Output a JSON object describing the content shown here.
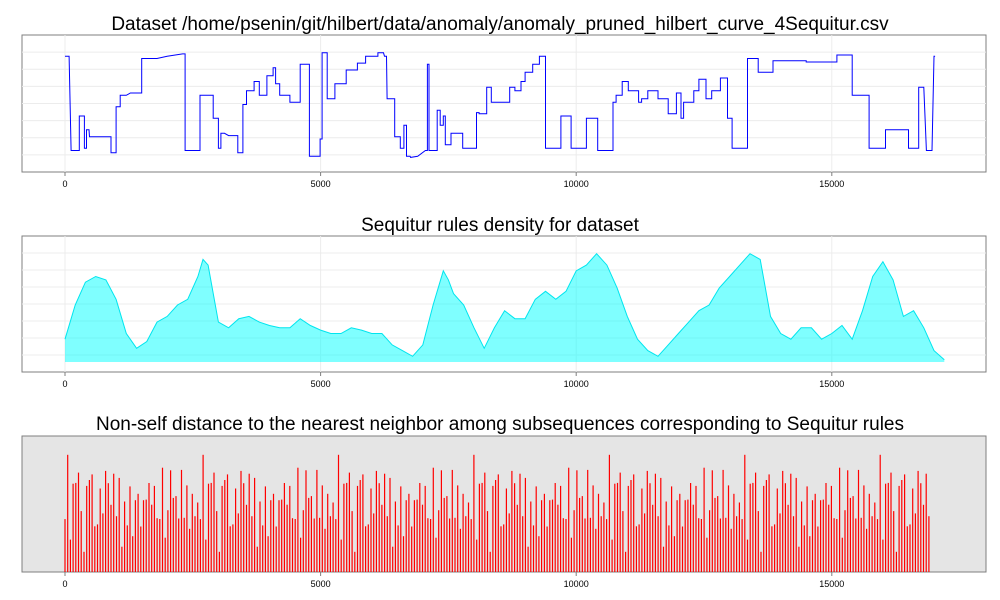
{
  "chart_data": [
    {
      "type": "line",
      "title": "Dataset /home/psenin/git/hilbert/data/anomaly/anomaly_pruned_hilbert_curve_4Sequitur.csv",
      "xlabel": "",
      "ylabel": "",
      "xlim": [
        0,
        17200
      ],
      "ylim": [
        0,
        1
      ],
      "x_ticks": [
        "0",
        "5000",
        "10000",
        "15000"
      ],
      "grid": true,
      "background": "white",
      "color": "#0000ff",
      "points": [
        [
          0,
          0.92
        ],
        [
          80,
          0.92
        ],
        [
          120,
          0.1
        ],
        [
          280,
          0.1
        ],
        [
          280,
          0.4
        ],
        [
          380,
          0.4
        ],
        [
          380,
          0.12
        ],
        [
          420,
          0.12
        ],
        [
          420,
          0.28
        ],
        [
          470,
          0.28
        ],
        [
          480,
          0.22
        ],
        [
          600,
          0.22
        ],
        [
          680,
          0.22
        ],
        [
          900,
          0.22
        ],
        [
          900,
          0.08
        ],
        [
          1000,
          0.08
        ],
        [
          1000,
          0.48
        ],
        [
          1080,
          0.48
        ],
        [
          1080,
          0.58
        ],
        [
          1200,
          0.58
        ],
        [
          1280,
          0.6
        ],
        [
          1500,
          0.6
        ],
        [
          1500,
          0.9
        ],
        [
          1560,
          0.9
        ],
        [
          1800,
          0.9
        ],
        [
          2000,
          0.92
        ],
        [
          2300,
          0.94
        ],
        [
          2350,
          0.94
        ],
        [
          2350,
          0.1
        ],
        [
          2640,
          0.1
        ],
        [
          2640,
          0.58
        ],
        [
          2900,
          0.58
        ],
        [
          2900,
          0.38
        ],
        [
          3000,
          0.38
        ],
        [
          3000,
          0.12
        ],
        [
          3050,
          0.12
        ],
        [
          3050,
          0.25
        ],
        [
          3120,
          0.25
        ],
        [
          3200,
          0.23
        ],
        [
          3380,
          0.23
        ],
        [
          3380,
          0.08
        ],
        [
          3480,
          0.08
        ],
        [
          3480,
          0.5
        ],
        [
          3550,
          0.5
        ],
        [
          3550,
          0.62
        ],
        [
          3700,
          0.62
        ],
        [
          3700,
          0.7
        ],
        [
          3800,
          0.7
        ],
        [
          3800,
          0.58
        ],
        [
          3950,
          0.58
        ],
        [
          3950,
          0.75
        ],
        [
          4070,
          0.75
        ],
        [
          4070,
          0.82
        ],
        [
          4120,
          0.82
        ],
        [
          4120,
          0.68
        ],
        [
          4200,
          0.68
        ],
        [
          4200,
          0.58
        ],
        [
          4400,
          0.58
        ],
        [
          4400,
          0.52
        ],
        [
          4600,
          0.52
        ],
        [
          4600,
          0.85
        ],
        [
          4780,
          0.85
        ],
        [
          4780,
          0.05
        ],
        [
          4990,
          0.05
        ],
        [
          4990,
          0.2
        ],
        [
          5030,
          0.2
        ],
        [
          5030,
          0.95
        ],
        [
          5130,
          0.95
        ],
        [
          5130,
          0.55
        ],
        [
          5280,
          0.55
        ],
        [
          5280,
          0.68
        ],
        [
          5500,
          0.68
        ],
        [
          5500,
          0.8
        ],
        [
          5720,
          0.8
        ],
        [
          5720,
          0.86
        ],
        [
          5880,
          0.86
        ],
        [
          5880,
          0.92
        ],
        [
          6120,
          0.92
        ],
        [
          6120,
          0.95
        ],
        [
          6230,
          0.95
        ],
        [
          6250,
          0.92
        ],
        [
          6290,
          0.92
        ],
        [
          6300,
          0.55
        ],
        [
          6450,
          0.55
        ],
        [
          6450,
          0.22
        ],
        [
          6560,
          0.22
        ],
        [
          6560,
          0.12
        ],
        [
          6630,
          0.12
        ],
        [
          6630,
          0.32
        ],
        [
          6680,
          0.32
        ],
        [
          6680,
          0.05
        ],
        [
          6750,
          0.05
        ],
        [
          6760,
          0.04
        ],
        [
          6900,
          0.05
        ],
        [
          7050,
          0.1
        ],
        [
          7090,
          0.1
        ],
        [
          7090,
          0.85
        ],
        [
          7120,
          0.85
        ],
        [
          7120,
          0.1
        ],
        [
          7280,
          0.1
        ],
        [
          7280,
          0.45
        ],
        [
          7340,
          0.45
        ],
        [
          7340,
          0.32
        ],
        [
          7400,
          0.32
        ],
        [
          7400,
          0.4
        ],
        [
          7440,
          0.4
        ],
        [
          7440,
          0.15
        ],
        [
          7550,
          0.15
        ],
        [
          7550,
          0.25
        ],
        [
          7780,
          0.25
        ],
        [
          7780,
          0.12
        ],
        [
          8050,
          0.12
        ],
        [
          8050,
          0.43
        ],
        [
          8100,
          0.43
        ],
        [
          8100,
          0.42
        ],
        [
          8250,
          0.42
        ],
        [
          8250,
          0.65
        ],
        [
          8300,
          0.65
        ],
        [
          8340,
          0.65
        ],
        [
          8340,
          0.52
        ],
        [
          8700,
          0.52
        ],
        [
          8700,
          0.65
        ],
        [
          8800,
          0.65
        ],
        [
          8800,
          0.62
        ],
        [
          8920,
          0.62
        ],
        [
          8920,
          0.7
        ],
        [
          9000,
          0.7
        ],
        [
          9000,
          0.78
        ],
        [
          9150,
          0.78
        ],
        [
          9150,
          0.85
        ],
        [
          9280,
          0.85
        ],
        [
          9280,
          0.92
        ],
        [
          9400,
          0.92
        ],
        [
          9400,
          0.12
        ],
        [
          9700,
          0.12
        ],
        [
          9700,
          0.4
        ],
        [
          9900,
          0.4
        ],
        [
          9900,
          0.12
        ],
        [
          10200,
          0.12
        ],
        [
          10200,
          0.38
        ],
        [
          10420,
          0.38
        ],
        [
          10420,
          0.1
        ],
        [
          10720,
          0.1
        ],
        [
          10720,
          0.52
        ],
        [
          10780,
          0.52
        ],
        [
          10780,
          0.58
        ],
        [
          10900,
          0.58
        ],
        [
          10900,
          0.7
        ],
        [
          11020,
          0.7
        ],
        [
          11020,
          0.62
        ],
        [
          11220,
          0.62
        ],
        [
          11220,
          0.52
        ],
        [
          11280,
          0.52
        ],
        [
          11280,
          0.55
        ],
        [
          11400,
          0.55
        ],
        [
          11400,
          0.62
        ],
        [
          11600,
          0.62
        ],
        [
          11600,
          0.55
        ],
        [
          11800,
          0.55
        ],
        [
          11800,
          0.42
        ],
        [
          11960,
          0.42
        ],
        [
          11960,
          0.6
        ],
        [
          12050,
          0.6
        ],
        [
          12050,
          0.38
        ],
        [
          12100,
          0.38
        ],
        [
          12100,
          0.52
        ],
        [
          12300,
          0.52
        ],
        [
          12300,
          0.62
        ],
        [
          12400,
          0.62
        ],
        [
          12400,
          0.72
        ],
        [
          12540,
          0.72
        ],
        [
          12540,
          0.55
        ],
        [
          12650,
          0.55
        ],
        [
          12650,
          0.62
        ],
        [
          12820,
          0.62
        ],
        [
          12820,
          0.73
        ],
        [
          12960,
          0.73
        ],
        [
          12960,
          0.38
        ],
        [
          13050,
          0.38
        ],
        [
          13050,
          0.12
        ],
        [
          13350,
          0.12
        ],
        [
          13350,
          0.9
        ],
        [
          13560,
          0.9
        ],
        [
          13560,
          0.78
        ],
        [
          13850,
          0.78
        ],
        [
          13850,
          0.88
        ],
        [
          14500,
          0.88
        ],
        [
          14500,
          0.87
        ],
        [
          15100,
          0.87
        ],
        [
          15100,
          0.93
        ],
        [
          15400,
          0.93
        ],
        [
          15400,
          0.58
        ],
        [
          15730,
          0.58
        ],
        [
          15730,
          0.12
        ],
        [
          16050,
          0.12
        ],
        [
          16050,
          0.28
        ],
        [
          16500,
          0.28
        ],
        [
          16500,
          0.12
        ],
        [
          16700,
          0.12
        ],
        [
          16700,
          0.65
        ],
        [
          16800,
          0.65
        ],
        [
          16850,
          0.1
        ],
        [
          16960,
          0.1
        ],
        [
          17000,
          0.92
        ],
        [
          17020,
          0.92
        ]
      ]
    },
    {
      "type": "area",
      "title": "Sequitur rules density for dataset",
      "xlabel": "",
      "ylabel": "",
      "xlim": [
        0,
        17200
      ],
      "ylim": [
        0,
        1
      ],
      "x_ticks": [
        "0",
        "5000",
        "10000",
        "15000"
      ],
      "grid": true,
      "background": "white",
      "fill_color": "#00ffff",
      "line_color": "#00e5ee",
      "points": [
        [
          0,
          0.2
        ],
        [
          200,
          0.5
        ],
        [
          400,
          0.7
        ],
        [
          600,
          0.75
        ],
        [
          800,
          0.72
        ],
        [
          1000,
          0.55
        ],
        [
          1200,
          0.25
        ],
        [
          1400,
          0.12
        ],
        [
          1600,
          0.18
        ],
        [
          1800,
          0.35
        ],
        [
          2000,
          0.4
        ],
        [
          2200,
          0.5
        ],
        [
          2400,
          0.55
        ],
        [
          2600,
          0.75
        ],
        [
          2700,
          0.9
        ],
        [
          2800,
          0.85
        ],
        [
          3000,
          0.35
        ],
        [
          3200,
          0.3
        ],
        [
          3400,
          0.38
        ],
        [
          3600,
          0.4
        ],
        [
          3800,
          0.35
        ],
        [
          4000,
          0.32
        ],
        [
          4200,
          0.3
        ],
        [
          4400,
          0.3
        ],
        [
          4600,
          0.38
        ],
        [
          4800,
          0.32
        ],
        [
          5000,
          0.28
        ],
        [
          5200,
          0.25
        ],
        [
          5400,
          0.25
        ],
        [
          5600,
          0.3
        ],
        [
          5800,
          0.28
        ],
        [
          6000,
          0.25
        ],
        [
          6200,
          0.25
        ],
        [
          6400,
          0.15
        ],
        [
          6600,
          0.1
        ],
        [
          6800,
          0.05
        ],
        [
          7000,
          0.15
        ],
        [
          7200,
          0.5
        ],
        [
          7400,
          0.8
        ],
        [
          7500,
          0.72
        ],
        [
          7600,
          0.6
        ],
        [
          7800,
          0.5
        ],
        [
          8000,
          0.3
        ],
        [
          8200,
          0.12
        ],
        [
          8400,
          0.3
        ],
        [
          8600,
          0.45
        ],
        [
          8800,
          0.38
        ],
        [
          9000,
          0.38
        ],
        [
          9200,
          0.55
        ],
        [
          9400,
          0.62
        ],
        [
          9600,
          0.55
        ],
        [
          9800,
          0.62
        ],
        [
          10000,
          0.8
        ],
        [
          10200,
          0.85
        ],
        [
          10400,
          0.95
        ],
        [
          10600,
          0.85
        ],
        [
          10800,
          0.65
        ],
        [
          11000,
          0.4
        ],
        [
          11200,
          0.2
        ],
        [
          11400,
          0.1
        ],
        [
          11600,
          0.05
        ],
        [
          11800,
          0.15
        ],
        [
          12000,
          0.25
        ],
        [
          12200,
          0.35
        ],
        [
          12400,
          0.45
        ],
        [
          12600,
          0.5
        ],
        [
          12800,
          0.65
        ],
        [
          13000,
          0.75
        ],
        [
          13200,
          0.85
        ],
        [
          13400,
          0.95
        ],
        [
          13600,
          0.9
        ],
        [
          13800,
          0.4
        ],
        [
          14000,
          0.25
        ],
        [
          14200,
          0.2
        ],
        [
          14400,
          0.3
        ],
        [
          14600,
          0.3
        ],
        [
          14800,
          0.2
        ],
        [
          15000,
          0.25
        ],
        [
          15200,
          0.32
        ],
        [
          15400,
          0.2
        ],
        [
          15600,
          0.45
        ],
        [
          15800,
          0.75
        ],
        [
          16000,
          0.88
        ],
        [
          16200,
          0.72
        ],
        [
          16400,
          0.4
        ],
        [
          16600,
          0.45
        ],
        [
          16800,
          0.3
        ],
        [
          17000,
          0.1
        ],
        [
          17200,
          0.02
        ]
      ]
    },
    {
      "type": "bar",
      "title": "Non-self distance to the nearest neighbor among subsequences corresponding to Sequitur rules",
      "xlabel": "",
      "ylabel": "",
      "xlim": [
        0,
        17200
      ],
      "ylim": [
        0,
        1
      ],
      "x_ticks": [
        "0",
        "5000",
        "10000",
        "15000"
      ],
      "grid": false,
      "background": "#e5e5e5",
      "color": "#ff0000",
      "data_span": [
        0,
        16900
      ],
      "bar_heights_sample": [
        0.35,
        0.92,
        0.18,
        0.55,
        0.7,
        0.88,
        0.42,
        0.15,
        0.62,
        0.8,
        0.95,
        0.3,
        0.5,
        0.75,
        0.22,
        0.9,
        0.6,
        0.4,
        0.85,
        0.25,
        0.68,
        0.12,
        0.78,
        0.45,
        0.98,
        0.33,
        0.58,
        0.82,
        0.2,
        0.65,
        0.48,
        0.72,
        0.38,
        0.9,
        0.28,
        0.55,
        0.8,
        0.15,
        0.62,
        0.93,
        0.42,
        0.7,
        0.25,
        0.87,
        0.5,
        0.6,
        0.35,
        0.75,
        0.18,
        0.66
      ]
    }
  ]
}
